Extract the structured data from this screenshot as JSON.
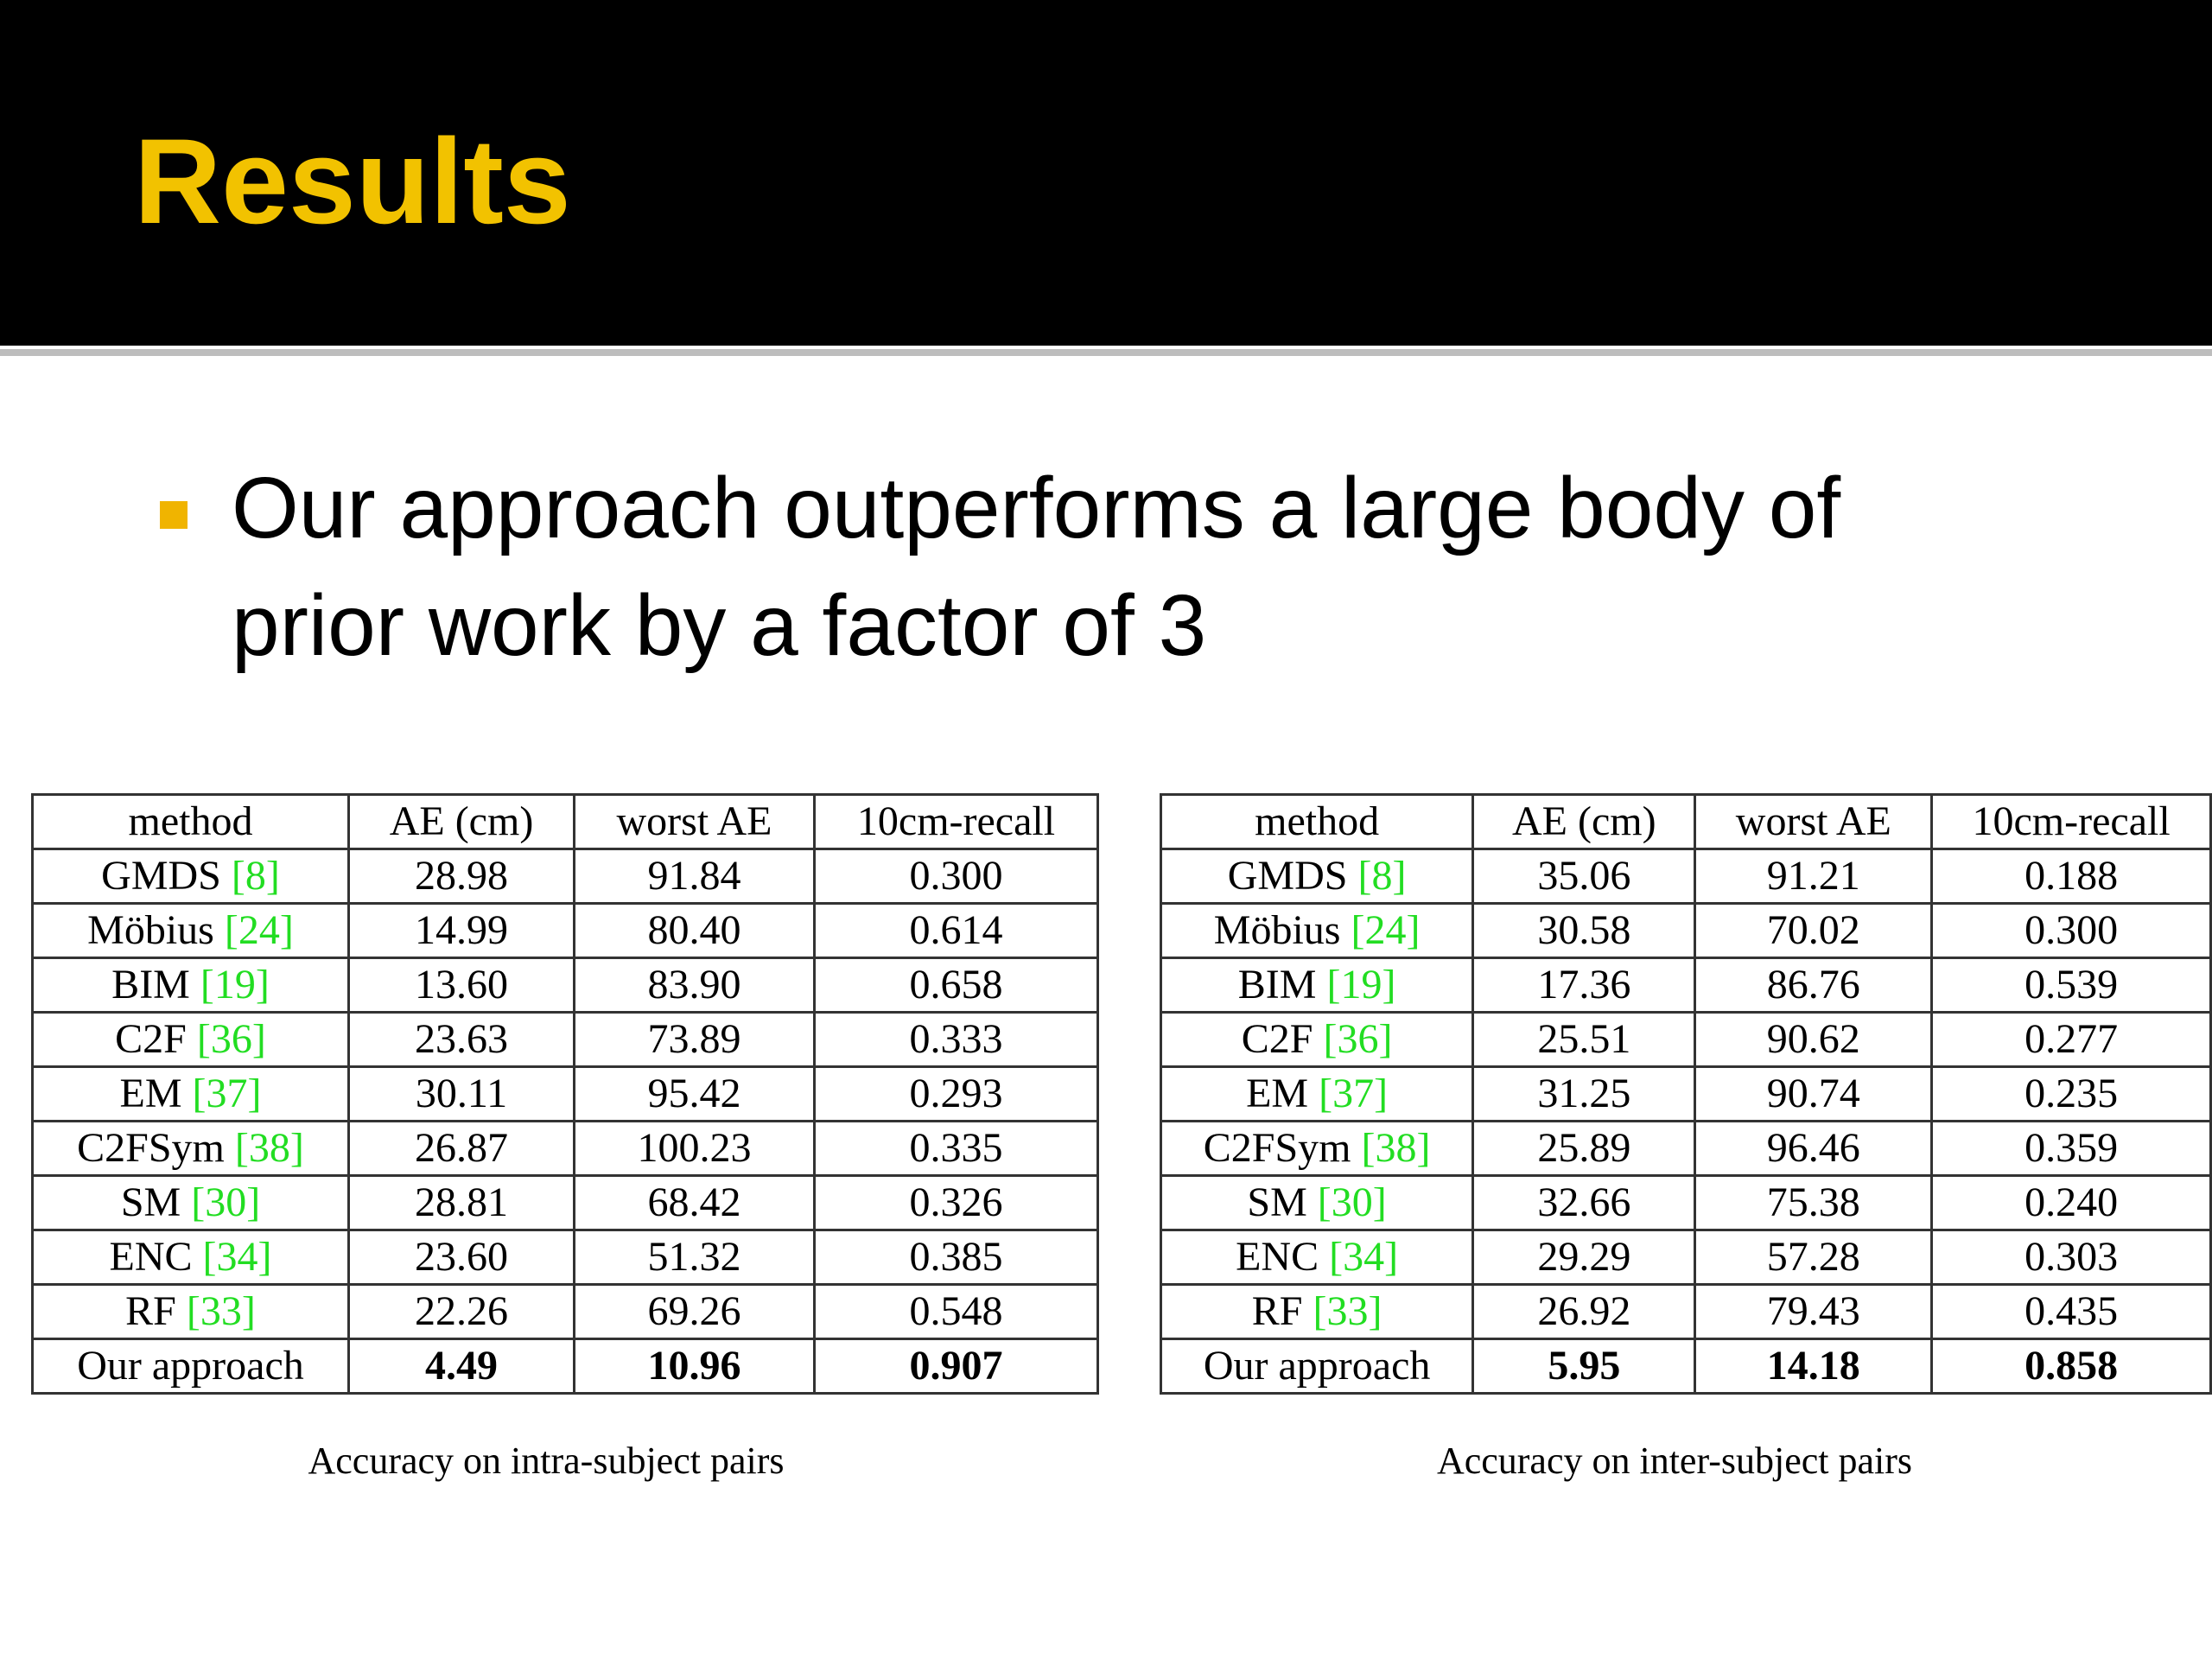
{
  "slide": {
    "title": "Results",
    "bullet": "Our approach outperforms a large body of prior work by a factor of 3"
  },
  "tables": [
    {
      "header": [
        "method",
        "AE (cm)",
        "worst AE",
        "10cm-recall"
      ],
      "rows": [
        {
          "method": "GMDS",
          "ref": "[8]",
          "cells": [
            "28.98",
            "91.84",
            "0.300"
          ]
        },
        {
          "method": "Möbius",
          "ref": "[24]",
          "cells": [
            "14.99",
            "80.40",
            "0.614"
          ]
        },
        {
          "method": "BIM",
          "ref": "[19]",
          "cells": [
            "13.60",
            "83.90",
            "0.658"
          ]
        },
        {
          "method": "C2F",
          "ref": "[36]",
          "cells": [
            "23.63",
            "73.89",
            "0.333"
          ]
        },
        {
          "method": "EM",
          "ref": "[37]",
          "cells": [
            "30.11",
            "95.42",
            "0.293"
          ]
        },
        {
          "method": "C2FSym",
          "ref": "[38]",
          "cells": [
            "26.87",
            "100.23",
            "0.335"
          ]
        },
        {
          "method": "SM",
          "ref": "[30]",
          "cells": [
            "28.81",
            "68.42",
            "0.326"
          ]
        },
        {
          "method": "ENC",
          "ref": "[34]",
          "cells": [
            "23.60",
            "51.32",
            "0.385"
          ]
        },
        {
          "method": "RF",
          "ref": "[33]",
          "cells": [
            "22.26",
            "69.26",
            "0.548"
          ]
        },
        {
          "method": "Our approach",
          "cells": [
            "4.49",
            "10.96",
            "0.907"
          ],
          "bold": true
        }
      ],
      "caption": "Accuracy on intra-subject pairs"
    },
    {
      "header": [
        "method",
        "AE (cm)",
        "worst AE",
        "10cm-recall"
      ],
      "rows": [
        {
          "method": "GMDS",
          "ref": "[8]",
          "cells": [
            "35.06",
            "91.21",
            "0.188"
          ]
        },
        {
          "method": "Möbius",
          "ref": "[24]",
          "cells": [
            "30.58",
            "70.02",
            "0.300"
          ]
        },
        {
          "method": "BIM",
          "ref": "[19]",
          "cells": [
            "17.36",
            "86.76",
            "0.539"
          ]
        },
        {
          "method": "C2F",
          "ref": "[36]",
          "cells": [
            "25.51",
            "90.62",
            "0.277"
          ]
        },
        {
          "method": "EM",
          "ref": "[37]",
          "cells": [
            "31.25",
            "90.74",
            "0.235"
          ]
        },
        {
          "method": "C2FSym",
          "ref": "[38]",
          "cells": [
            "25.89",
            "96.46",
            "0.359"
          ]
        },
        {
          "method": "SM",
          "ref": "[30]",
          "cells": [
            "32.66",
            "75.38",
            "0.240"
          ]
        },
        {
          "method": "ENC",
          "ref": "[34]",
          "cells": [
            "29.29",
            "57.28",
            "0.303"
          ]
        },
        {
          "method": "RF",
          "ref": "[33]",
          "cells": [
            "26.92",
            "79.43",
            "0.435"
          ]
        },
        {
          "method": "Our approach",
          "cells": [
            "5.95",
            "14.18",
            "0.858"
          ],
          "bold": true
        }
      ],
      "caption": "Accuracy on inter-subject pairs"
    }
  ]
}
